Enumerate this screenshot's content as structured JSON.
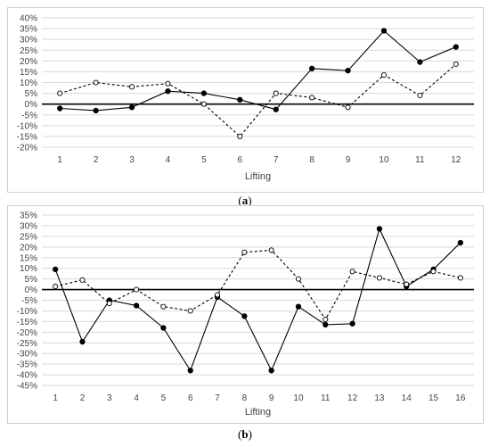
{
  "chart_data": [
    {
      "id": "a",
      "type": "line",
      "caption_open": "(",
      "caption_letter": "a",
      "caption_close": ")",
      "xlabel": "Lifting",
      "categories": [
        "1",
        "2",
        "3",
        "4",
        "5",
        "6",
        "7",
        "8",
        "9",
        "10",
        "11",
        "12"
      ],
      "ylim": [
        -20,
        40
      ],
      "yticks": [
        -20,
        -15,
        -10,
        -5,
        0,
        5,
        10,
        15,
        20,
        25,
        30,
        35,
        40
      ],
      "ytick_labels": [
        "-20%",
        "-15%",
        "-10%",
        "-5%",
        "0%",
        "5%",
        "10%",
        "15%",
        "20%",
        "25%",
        "30%",
        "35%",
        "40%"
      ],
      "grid": true,
      "series": [
        {
          "style": "solid",
          "marker": "filled-circle",
          "color": "#000000",
          "values": [
            -2,
            -3,
            -1.5,
            6,
            5,
            2,
            -2.5,
            16.5,
            15.5,
            34,
            19.5,
            26.5
          ]
        },
        {
          "style": "dashed",
          "marker": "open-circle",
          "color": "#000000",
          "values": [
            5,
            10,
            8,
            9.5,
            0,
            -15,
            5,
            3,
            -1.5,
            13.5,
            4,
            18.5
          ]
        }
      ]
    },
    {
      "id": "b",
      "type": "line",
      "caption_open": "(",
      "caption_letter": "b",
      "caption_close": ")",
      "xlabel": "Lifting",
      "categories": [
        "1",
        "2",
        "3",
        "4",
        "5",
        "6",
        "7",
        "8",
        "9",
        "10",
        "11",
        "12",
        "13",
        "14",
        "15",
        "16"
      ],
      "ylim": [
        -45,
        35
      ],
      "yticks": [
        -45,
        -40,
        -35,
        -30,
        -25,
        -20,
        -15,
        -10,
        -5,
        0,
        5,
        10,
        15,
        20,
        25,
        30,
        35
      ],
      "ytick_labels": [
        "-45%",
        "-40%",
        "-35%",
        "-30%",
        "-25%",
        "-20%",
        "-15%",
        "-10%",
        "-5%",
        "0%",
        "5%",
        "10%",
        "15%",
        "20%",
        "25%",
        "30%",
        "35%"
      ],
      "grid": true,
      "series": [
        {
          "style": "solid",
          "marker": "filled-circle",
          "color": "#000000",
          "values": [
            9.5,
            -24.5,
            -5,
            -7.5,
            -18,
            -38,
            -3.5,
            -12.5,
            -38,
            -8,
            -16.5,
            -16,
            28.5,
            1.5,
            9.5,
            22
          ]
        },
        {
          "style": "dashed",
          "marker": "open-circle",
          "color": "#000000",
          "values": [
            1.5,
            4.5,
            -6.5,
            0,
            -8,
            -10,
            -2.5,
            17.5,
            18.5,
            5,
            -14,
            8.5,
            5.5,
            2.5,
            8.5,
            5.5
          ]
        }
      ]
    }
  ]
}
